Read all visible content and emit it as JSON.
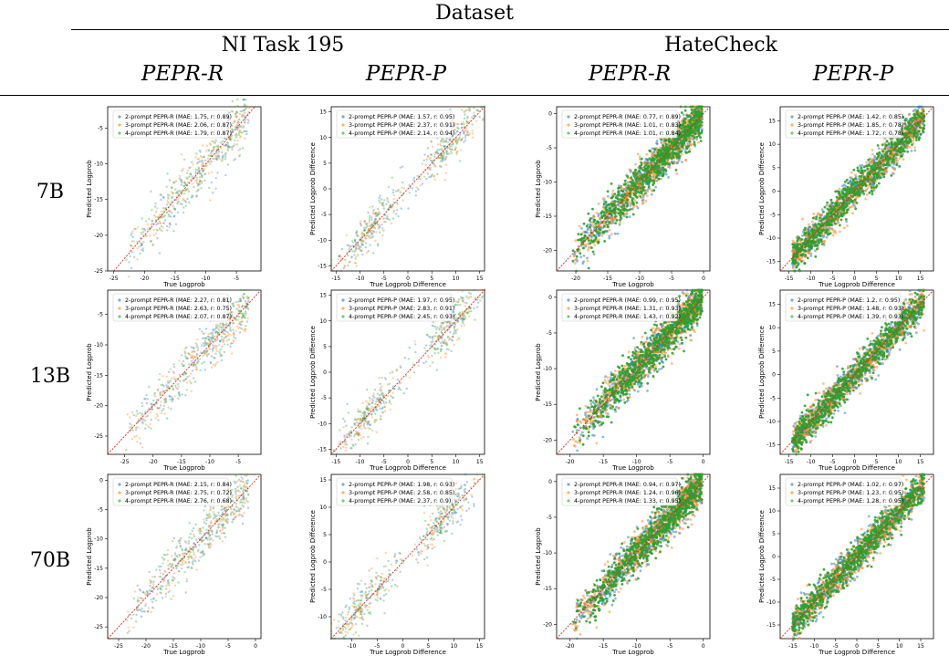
{
  "header": {
    "dataset": "Dataset",
    "groups": [
      "NI Task 195",
      "HateCheck"
    ],
    "methods": [
      "PEPR-R",
      "PEPR-P",
      "PEPR-R",
      "PEPR-P"
    ]
  },
  "rows": [
    "7B",
    "13B",
    "70B"
  ],
  "colors": {
    "s2": "#1f77b4",
    "s3": "#ff7f0e",
    "s4": "#2ca02c",
    "diag": "#d62728"
  },
  "chart_data": [
    {
      "type": "scatter",
      "row": "7B",
      "dataset": "NI Task 195",
      "method": "PEPR-R",
      "xlabel": "True Logprob",
      "ylabel": "Predicted Logprob",
      "xlim": [
        -26,
        -1
      ],
      "ylim": [
        -25,
        -2
      ],
      "xticks": [
        -25,
        -20,
        -15,
        -10,
        -5
      ],
      "yticks": [
        -25,
        -20,
        -15,
        -10,
        -5
      ],
      "legend": "upper-right",
      "series": [
        {
          "name": "2-prompt PEPR-R",
          "mae": 1.75,
          "r": 0.89,
          "label": "2-prompt PEPR-R (MAE: 1.75, r: 0.89)"
        },
        {
          "name": "3-prompt PEPR-R",
          "mae": 2.06,
          "r": 0.87,
          "label": "3-prompt PEPR-R (MAE: 2.06, r: 0.87)"
        },
        {
          "name": "4-prompt PEPR-R",
          "mae": 1.79,
          "r": 0.87,
          "label": "4-prompt PEPR-R (MAE: 1.79, r: 0.87)"
        }
      ],
      "pattern": "ni"
    },
    {
      "type": "scatter",
      "row": "7B",
      "dataset": "NI Task 195",
      "method": "PEPR-P",
      "xlabel": "True Logprob Difference",
      "ylabel": "Predicted Logprob Difference",
      "xlim": [
        -16,
        16
      ],
      "ylim": [
        -16,
        16
      ],
      "xticks": [
        -15,
        -10,
        -5,
        0,
        5,
        10,
        15
      ],
      "yticks": [
        -15,
        -10,
        -5,
        0,
        5,
        10,
        15
      ],
      "legend": "upper-left",
      "series": [
        {
          "name": "2-prompt PEPR-P",
          "mae": 1.57,
          "r": 0.95,
          "label": "2-prompt PEPR-P (MAE: 1.57, r: 0.95)"
        },
        {
          "name": "3-prompt PEPR-P",
          "mae": 2.37,
          "r": 0.91,
          "label": "3-prompt PEPR-P (MAE: 2.37, r: 0.91)"
        },
        {
          "name": "4-prompt PEPR-P",
          "mae": 2.14,
          "r": 0.94,
          "label": "4-prompt PEPR-P (MAE: 2.14, r: 0.94)"
        }
      ],
      "pattern": "nip"
    },
    {
      "type": "scatter",
      "row": "7B",
      "dataset": "HateCheck",
      "method": "PEPR-R",
      "xlabel": "True Logprob",
      "ylabel": "Predicted Logprob",
      "xlim": [
        -23,
        1
      ],
      "ylim": [
        -23,
        1
      ],
      "xticks": [
        -20,
        -15,
        -10,
        -5,
        0
      ],
      "yticks": [
        -20,
        -15,
        -10,
        -5,
        0
      ],
      "legend": "upper-left",
      "series": [
        {
          "name": "2-prompt PEPR-R",
          "mae": 0.77,
          "r": 0.89,
          "label": "2-prompt PEPR-R (MAE: 0.77, r: 0.89)"
        },
        {
          "name": "3-prompt PEPR-R",
          "mae": 1.01,
          "r": 0.83,
          "label": "3-prompt PEPR-R (MAE: 1.01, r: 0.83)"
        },
        {
          "name": "4-prompt PEPR-R",
          "mae": 1.01,
          "r": 0.84,
          "label": "4-prompt PEPR-R (MAE: 1.01, r: 0.84)"
        }
      ],
      "pattern": "hc"
    },
    {
      "type": "scatter",
      "row": "7B",
      "dataset": "HateCheck",
      "method": "PEPR-P",
      "xlabel": "True Logprob Difference",
      "ylabel": "Predicted Logprob Difference",
      "xlim": [
        -17,
        18
      ],
      "ylim": [
        -17,
        18
      ],
      "xticks": [
        -15,
        -10,
        -5,
        0,
        5,
        10,
        15
      ],
      "yticks": [
        -15,
        -10,
        -5,
        0,
        5,
        10,
        15
      ],
      "legend": "upper-left",
      "series": [
        {
          "name": "2-prompt PEPR-P",
          "mae": 1.42,
          "r": 0.85,
          "label": "2-prompt PEPR-P (MAE: 1.42, r: 0.85)"
        },
        {
          "name": "3-prompt PEPR-P",
          "mae": 1.85,
          "r": 0.78,
          "label": "3-prompt PEPR-P (MAE: 1.85, r: 0.78)"
        },
        {
          "name": "4-prompt PEPR-P",
          "mae": 1.72,
          "r": 0.78,
          "label": "4-prompt PEPR-P (MAE: 1.72, r: 0.78)"
        }
      ],
      "pattern": "hcp"
    },
    {
      "type": "scatter",
      "row": "13B",
      "dataset": "NI Task 195",
      "method": "PEPR-R",
      "xlabel": "True Logprob",
      "ylabel": "Predicted Logprob",
      "xlim": [
        -28,
        -1
      ],
      "ylim": [
        -28,
        -1
      ],
      "xticks": [
        -25,
        -20,
        -15,
        -10,
        -5
      ],
      "yticks": [
        -25,
        -20,
        -15,
        -10,
        -5
      ],
      "legend": "upper-left",
      "series": [
        {
          "name": "2-prompt PEPR-R",
          "mae": 2.27,
          "r": 0.81,
          "label": "2-prompt PEPR-R (MAE: 2.27, r: 0.81)"
        },
        {
          "name": "3-prompt PEPR-R",
          "mae": 2.63,
          "r": 0.75,
          "label": "3-prompt PEPR-R (MAE: 2.63, r: 0.75)"
        },
        {
          "name": "4-prompt PEPR-R",
          "mae": 2.07,
          "r": 0.87,
          "label": "4-prompt PEPR-R (MAE: 2.07, r: 0.87)"
        }
      ],
      "pattern": "ni"
    },
    {
      "type": "scatter",
      "row": "13B",
      "dataset": "NI Task 195",
      "method": "PEPR-P",
      "xlabel": "True Logprob Difference",
      "ylabel": "Predicted Logprob Difference",
      "xlim": [
        -16,
        16
      ],
      "ylim": [
        -16,
        16
      ],
      "xticks": [
        -15,
        -10,
        -5,
        0,
        5,
        10,
        15
      ],
      "yticks": [
        -15,
        -10,
        -5,
        0,
        5,
        10,
        15
      ],
      "legend": "upper-left",
      "series": [
        {
          "name": "2-prompt PEPR-P",
          "mae": 1.97,
          "r": 0.95,
          "label": "2-prompt PEPR-P (MAE: 1.97, r: 0.95)"
        },
        {
          "name": "3-prompt PEPR-P",
          "mae": 2.83,
          "r": 0.91,
          "label": "3-prompt PEPR-P (MAE: 2.83, r: 0.91)"
        },
        {
          "name": "4-prompt PEPR-P",
          "mae": 2.45,
          "r": 0.93,
          "label": "4-prompt PEPR-P (MAE: 2.45, r: 0.93)"
        }
      ],
      "pattern": "nip2"
    },
    {
      "type": "scatter",
      "row": "13B",
      "dataset": "HateCheck",
      "method": "PEPR-R",
      "xlabel": "True Logprob",
      "ylabel": "Predicted Logprob",
      "xlim": [
        -22,
        1
      ],
      "ylim": [
        -22,
        1
      ],
      "xticks": [
        -20,
        -15,
        -10,
        -5,
        0
      ],
      "yticks": [
        -20,
        -15,
        -10,
        -5,
        0
      ],
      "legend": "upper-left",
      "series": [
        {
          "name": "2-prompt PEPR-R",
          "mae": 0.99,
          "r": 0.95,
          "label": "2-prompt PEPR-R (MAE: 0.99, r: 0.95)"
        },
        {
          "name": "3-prompt PEPR-R",
          "mae": 1.31,
          "r": 0.93,
          "label": "3-prompt PEPR-R (MAE: 1.31, r: 0.93)"
        },
        {
          "name": "4-prompt PEPR-R",
          "mae": 1.43,
          "r": 0.92,
          "label": "4-prompt PEPR-R (MAE: 1.43, r: 0.92)"
        }
      ],
      "pattern": "hc2"
    },
    {
      "type": "scatter",
      "row": "13B",
      "dataset": "HateCheck",
      "method": "PEPR-P",
      "xlabel": "True Logprob Difference",
      "ylabel": "Predicted Logprob Difference",
      "xlim": [
        -17,
        18
      ],
      "ylim": [
        -17,
        18
      ],
      "xticks": [
        -15,
        -10,
        -5,
        0,
        5,
        10,
        15
      ],
      "yticks": [
        -15,
        -10,
        -5,
        0,
        5,
        10,
        15
      ],
      "legend": "upper-left",
      "series": [
        {
          "name": "2-prompt PEPR-P",
          "mae": 1.2,
          "r": 0.95,
          "label": "2-prompt PEPR-P (MAE: 1.2, r: 0.95)"
        },
        {
          "name": "3-prompt PEPR-P",
          "mae": 1.48,
          "r": 0.93,
          "label": "3-prompt PEPR-P (MAE: 1.48, r: 0.93)"
        },
        {
          "name": "4-prompt PEPR-P",
          "mae": 1.39,
          "r": 0.93,
          "label": "4-prompt PEPR-P (MAE: 1.39, r: 0.93)"
        }
      ],
      "pattern": "hcp2"
    },
    {
      "type": "scatter",
      "row": "70B",
      "dataset": "NI Task 195",
      "method": "PEPR-R",
      "xlabel": "True Logprob",
      "ylabel": "Predicted Logprob",
      "xlim": [
        -27,
        1
      ],
      "ylim": [
        -27,
        1
      ],
      "xticks": [
        -25,
        -20,
        -15,
        -10,
        -5,
        0
      ],
      "yticks": [
        -25,
        -20,
        -15,
        -10,
        -5,
        0
      ],
      "legend": "upper-left",
      "series": [
        {
          "name": "2-prompt PEPR-R",
          "mae": 2.15,
          "r": 0.84,
          "label": "2-prompt PEPR-R (MAE: 2.15, r: 0.84)"
        },
        {
          "name": "3-prompt PEPR-R",
          "mae": 2.75,
          "r": 0.72,
          "label": "3-prompt PEPR-R (MAE: 2.75, r: 0.72)"
        },
        {
          "name": "4-prompt PEPR-R",
          "mae": 2.76,
          "r": 0.68,
          "label": "4-prompt PEPR-R (MAE: 2.76, r: 0.68)"
        }
      ],
      "pattern": "ni"
    },
    {
      "type": "scatter",
      "row": "70B",
      "dataset": "NI Task 195",
      "method": "PEPR-P",
      "xlabel": "True Logprob Difference",
      "ylabel": "Predicted Logprob Difference",
      "xlim": [
        -14,
        16
      ],
      "ylim": [
        -14,
        16
      ],
      "xticks": [
        -10,
        -5,
        0,
        5,
        10,
        15
      ],
      "yticks": [
        -10,
        -5,
        0,
        5,
        10,
        15
      ],
      "legend": "upper-left",
      "series": [
        {
          "name": "2-prompt PEPR-P",
          "mae": 1.98,
          "r": 0.93,
          "label": "2-prompt PEPR-P (MAE: 1.98, r: 0.93)"
        },
        {
          "name": "3-prompt PEPR-P",
          "mae": 2.58,
          "r": 0.85,
          "label": "3-prompt PEPR-P (MAE: 2.58, r: 0.85)"
        },
        {
          "name": "4-prompt PEPR-P",
          "mae": 2.37,
          "r": 0.9,
          "label": "4-prompt PEPR-P (MAE: 2.37, r: 0.9)"
        }
      ],
      "pattern": "nip"
    },
    {
      "type": "scatter",
      "row": "70B",
      "dataset": "HateCheck",
      "method": "PEPR-R",
      "xlabel": "True Logprob",
      "ylabel": "Predicted Logprob",
      "xlim": [
        -22,
        1
      ],
      "ylim": [
        -22,
        1
      ],
      "xticks": [
        -20,
        -15,
        -10,
        -5,
        0
      ],
      "yticks": [
        -20,
        -15,
        -10,
        -5,
        0
      ],
      "legend": "upper-left",
      "series": [
        {
          "name": "2-prompt PEPR-R",
          "mae": 0.94,
          "r": 0.97,
          "label": "2-prompt PEPR-R (MAE: 0.94, r: 0.97)"
        },
        {
          "name": "3-prompt PEPR-R",
          "mae": 1.24,
          "r": 0.96,
          "label": "3-prompt PEPR-R (MAE: 1.24, r: 0.96)"
        },
        {
          "name": "4-prompt PEPR-R",
          "mae": 1.33,
          "r": 0.95,
          "label": "4-prompt PEPR-R (MAE: 1.33, r: 0.95)"
        }
      ],
      "pattern": "hc3"
    },
    {
      "type": "scatter",
      "row": "70B",
      "dataset": "HateCheck",
      "method": "PEPR-P",
      "xlabel": "True Logprob Difference",
      "ylabel": "Predicted Logprob Difference",
      "xlim": [
        -18,
        18
      ],
      "ylim": [
        -18,
        18
      ],
      "xticks": [
        -15,
        -10,
        -5,
        0,
        5,
        10,
        15
      ],
      "yticks": [
        -15,
        -10,
        -5,
        0,
        5,
        10,
        15
      ],
      "legend": "upper-left",
      "series": [
        {
          "name": "2-prompt PEPR-P",
          "mae": 1.02,
          "r": 0.97,
          "label": "2-prompt PEPR-P (MAE: 1.02, r: 0.97)"
        },
        {
          "name": "3-prompt PEPR-P",
          "mae": 1.23,
          "r": 0.95,
          "label": "3-prompt PEPR-P (MAE: 1.23, r: 0.95)"
        },
        {
          "name": "4-prompt PEPR-P",
          "mae": 1.28,
          "r": 0.95,
          "label": "4-prompt PEPR-P (MAE: 1.28, r: 0.95)"
        }
      ],
      "pattern": "hcp3"
    }
  ]
}
